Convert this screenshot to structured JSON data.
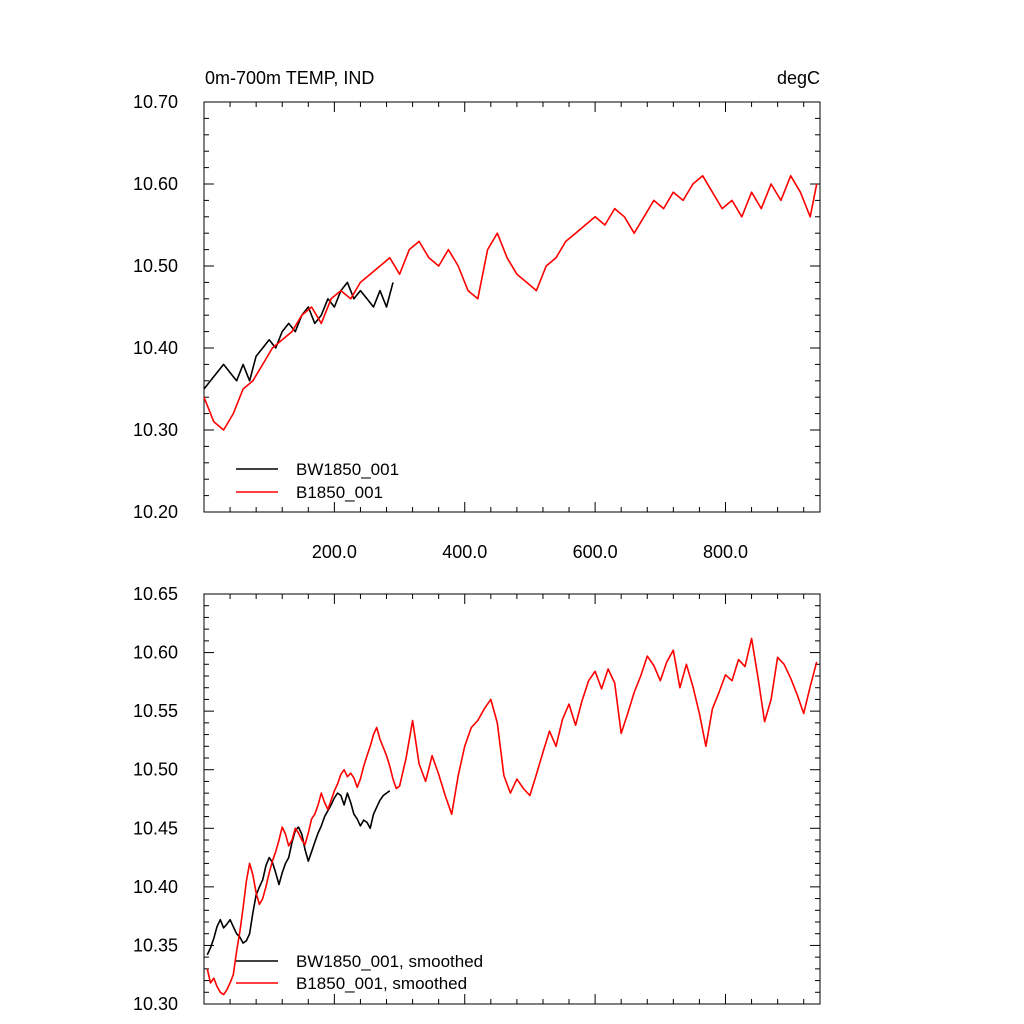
{
  "chart_data": [
    {
      "type": "line",
      "title": "0m-700m TEMP, IND",
      "units": "degC",
      "xlabel": "",
      "ylabel": "",
      "xlim": [
        0,
        945
      ],
      "ylim": [
        10.2,
        10.7
      ],
      "grid": false,
      "legend_position": "bottom-left",
      "x_ticks": [
        200,
        400,
        600,
        800
      ],
      "x_tick_labels": [
        "200.0",
        "400.0",
        "600.0",
        "800.0"
      ],
      "y_ticks": [
        10.2,
        10.3,
        10.4,
        10.5,
        10.6,
        10.7
      ],
      "y_tick_labels": [
        "10.20",
        "10.30",
        "10.40",
        "10.50",
        "10.60",
        "10.70"
      ],
      "series": [
        {
          "name": "BW1850_001",
          "color": "#000000",
          "x": [
            0,
            10,
            20,
            30,
            40,
            50,
            60,
            70,
            80,
            90,
            100,
            110,
            120,
            130,
            140,
            150,
            160,
            170,
            180,
            190,
            200,
            210,
            220,
            230,
            240,
            250,
            260,
            270,
            280,
            290
          ],
          "values": [
            10.35,
            10.36,
            10.37,
            10.38,
            10.37,
            10.36,
            10.38,
            10.36,
            10.39,
            10.4,
            10.41,
            10.4,
            10.42,
            10.43,
            10.42,
            10.44,
            10.45,
            10.43,
            10.44,
            10.46,
            10.45,
            10.47,
            10.48,
            10.46,
            10.47,
            10.46,
            10.45,
            10.47,
            10.45,
            10.48
          ]
        },
        {
          "name": "B1850_001",
          "color": "#ff0000",
          "x": [
            0,
            15,
            30,
            45,
            60,
            75,
            90,
            105,
            120,
            135,
            150,
            165,
            180,
            195,
            210,
            225,
            240,
            255,
            270,
            285,
            300,
            315,
            330,
            345,
            360,
            375,
            390,
            405,
            420,
            435,
            450,
            465,
            480,
            495,
            510,
            525,
            540,
            555,
            570,
            585,
            600,
            615,
            630,
            645,
            660,
            675,
            690,
            705,
            720,
            735,
            750,
            765,
            780,
            795,
            810,
            825,
            840,
            855,
            870,
            885,
            900,
            915,
            930,
            940
          ],
          "values": [
            10.34,
            10.31,
            10.3,
            10.32,
            10.35,
            10.36,
            10.38,
            10.4,
            10.41,
            10.42,
            10.44,
            10.45,
            10.43,
            10.46,
            10.47,
            10.46,
            10.48,
            10.49,
            10.5,
            10.51,
            10.49,
            10.52,
            10.53,
            10.51,
            10.5,
            10.52,
            10.5,
            10.47,
            10.46,
            10.52,
            10.54,
            10.51,
            10.49,
            10.48,
            10.47,
            10.5,
            10.51,
            10.53,
            10.54,
            10.55,
            10.56,
            10.55,
            10.57,
            10.56,
            10.54,
            10.56,
            10.58,
            10.57,
            10.59,
            10.58,
            10.6,
            10.61,
            10.59,
            10.57,
            10.58,
            10.56,
            10.59,
            10.57,
            10.6,
            10.58,
            10.61,
            10.59,
            10.56,
            10.6
          ]
        }
      ],
      "annotations": []
    },
    {
      "type": "line",
      "title": "",
      "xlabel": "",
      "ylabel": "",
      "xlim": [
        0,
        945
      ],
      "ylim": [
        10.3,
        10.65
      ],
      "grid": false,
      "legend_position": "bottom-left",
      "y_ticks": [
        10.3,
        10.35,
        10.4,
        10.45,
        10.5,
        10.55,
        10.6,
        10.65
      ],
      "y_tick_labels": [
        "10.30",
        "10.35",
        "10.40",
        "10.45",
        "10.50",
        "10.55",
        "10.60",
        "10.65"
      ],
      "series": [
        {
          "name": "BW1850_001, smoothed",
          "color": "#000000",
          "x": [
            5,
            10,
            15,
            20,
            25,
            30,
            35,
            40,
            45,
            50,
            55,
            60,
            65,
            70,
            75,
            80,
            85,
            90,
            95,
            100,
            105,
            110,
            115,
            120,
            125,
            130,
            135,
            140,
            145,
            150,
            155,
            160,
            165,
            170,
            175,
            180,
            185,
            190,
            195,
            200,
            205,
            210,
            215,
            220,
            225,
            230,
            235,
            240,
            245,
            250,
            255,
            260,
            265,
            270,
            275,
            280,
            285
          ],
          "values": [
            10.342,
            10.348,
            10.356,
            10.366,
            10.372,
            10.365,
            10.368,
            10.372,
            10.366,
            10.36,
            10.357,
            10.352,
            10.354,
            10.36,
            10.378,
            10.393,
            10.4,
            10.406,
            10.418,
            10.425,
            10.421,
            10.412,
            10.402,
            10.412,
            10.42,
            10.425,
            10.438,
            10.448,
            10.451,
            10.445,
            10.432,
            10.422,
            10.43,
            10.438,
            10.446,
            10.452,
            10.46,
            10.465,
            10.47,
            10.476,
            10.48,
            10.478,
            10.47,
            10.48,
            10.472,
            10.462,
            10.458,
            10.452,
            10.457,
            10.455,
            10.45,
            10.462,
            10.468,
            10.474,
            10.478,
            10.48,
            10.482
          ]
        },
        {
          "name": "B1850_001, smoothed",
          "color": "#ff0000",
          "x": [
            5,
            10,
            15,
            20,
            25,
            30,
            35,
            40,
            45,
            50,
            55,
            60,
            65,
            70,
            75,
            80,
            85,
            90,
            95,
            100,
            105,
            110,
            115,
            120,
            125,
            130,
            135,
            140,
            145,
            150,
            155,
            160,
            165,
            170,
            175,
            180,
            185,
            190,
            195,
            200,
            205,
            210,
            215,
            220,
            225,
            230,
            235,
            240,
            245,
            250,
            255,
            260,
            265,
            270,
            275,
            280,
            285,
            290,
            295,
            300,
            310,
            320,
            330,
            340,
            350,
            360,
            370,
            380,
            390,
            400,
            410,
            420,
            430,
            440,
            450,
            460,
            470,
            480,
            490,
            500,
            510,
            520,
            530,
            540,
            550,
            560,
            570,
            580,
            590,
            600,
            610,
            620,
            630,
            640,
            650,
            660,
            670,
            680,
            690,
            700,
            710,
            720,
            730,
            740,
            750,
            760,
            770,
            780,
            790,
            800,
            810,
            820,
            830,
            840,
            850,
            860,
            870,
            880,
            890,
            900,
            910,
            920,
            930,
            940
          ],
          "values": [
            10.33,
            10.318,
            10.322,
            10.315,
            10.31,
            10.308,
            10.312,
            10.318,
            10.325,
            10.345,
            10.362,
            10.382,
            10.405,
            10.42,
            10.41,
            10.395,
            10.385,
            10.39,
            10.4,
            10.412,
            10.422,
            10.43,
            10.44,
            10.451,
            10.445,
            10.435,
            10.44,
            10.45,
            10.446,
            10.44,
            10.436,
            10.446,
            10.458,
            10.462,
            10.47,
            10.48,
            10.472,
            10.466,
            10.474,
            10.482,
            10.488,
            10.496,
            10.5,
            10.494,
            10.497,
            10.493,
            10.485,
            10.492,
            10.503,
            10.512,
            10.52,
            10.53,
            10.536,
            10.526,
            10.519,
            10.512,
            10.503,
            10.492,
            10.484,
            10.486,
            10.51,
            10.542,
            10.505,
            10.49,
            10.512,
            10.496,
            10.478,
            10.462,
            10.495,
            10.52,
            10.536,
            10.542,
            10.552,
            10.56,
            10.54,
            10.495,
            10.48,
            10.492,
            10.484,
            10.478,
            10.496,
            10.515,
            10.533,
            10.52,
            10.543,
            10.556,
            10.538,
            10.559,
            10.576,
            10.584,
            10.569,
            10.586,
            10.574,
            10.531,
            10.548,
            10.566,
            10.58,
            10.597,
            10.589,
            10.576,
            10.592,
            10.602,
            10.57,
            10.59,
            10.571,
            10.548,
            10.52,
            10.552,
            10.566,
            10.581,
            10.576,
            10.594,
            10.588,
            10.612,
            10.578,
            10.541,
            10.56,
            10.596,
            10.59,
            10.578,
            10.564,
            10.548,
            10.571,
            10.592
          ]
        }
      ],
      "annotations": []
    }
  ]
}
